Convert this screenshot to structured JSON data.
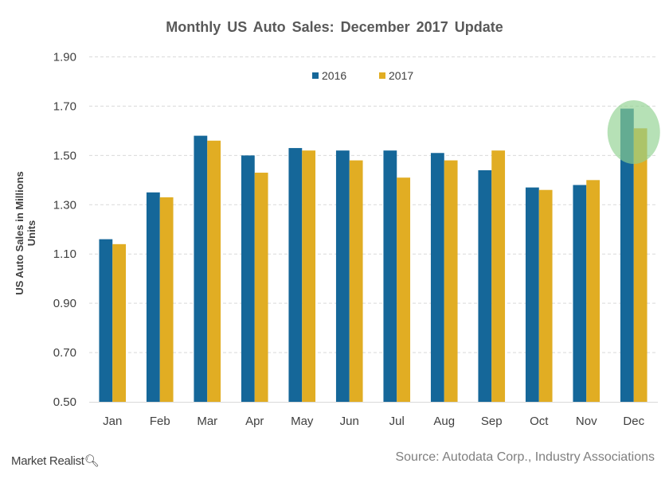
{
  "chart_data": {
    "type": "bar",
    "title": "Monthly  US Auto Sales: December  2017 Update",
    "xlabel": "",
    "ylabel": "US Auto Sales in Millions Units",
    "ylim": [
      0.5,
      1.9
    ],
    "yticks": [
      "0.50",
      "0.70",
      "0.90",
      "1.10",
      "1.30",
      "1.50",
      "1.70",
      "1.90"
    ],
    "grid": true,
    "legend_position": "top-center",
    "categories": [
      "Jan",
      "Feb",
      "Mar",
      "Apr",
      "May",
      "Jun",
      "Jul",
      "Aug",
      "Sep",
      "Oct",
      "Nov",
      "Dec"
    ],
    "series": [
      {
        "name": "2016",
        "color": "#156799",
        "values": [
          1.16,
          1.35,
          1.58,
          1.5,
          1.53,
          1.52,
          1.52,
          1.51,
          1.44,
          1.37,
          1.38,
          1.69
        ]
      },
      {
        "name": "2017",
        "color": "#E1AD23",
        "values": [
          1.14,
          1.33,
          1.56,
          1.43,
          1.52,
          1.48,
          1.41,
          1.48,
          1.52,
          1.36,
          1.4,
          1.61
        ]
      }
    ],
    "highlight": {
      "category": "Dec",
      "color": "#8fd18f"
    }
  },
  "source": "Source: Autodata Corp., Industry Associations",
  "logo": "Market Realist"
}
